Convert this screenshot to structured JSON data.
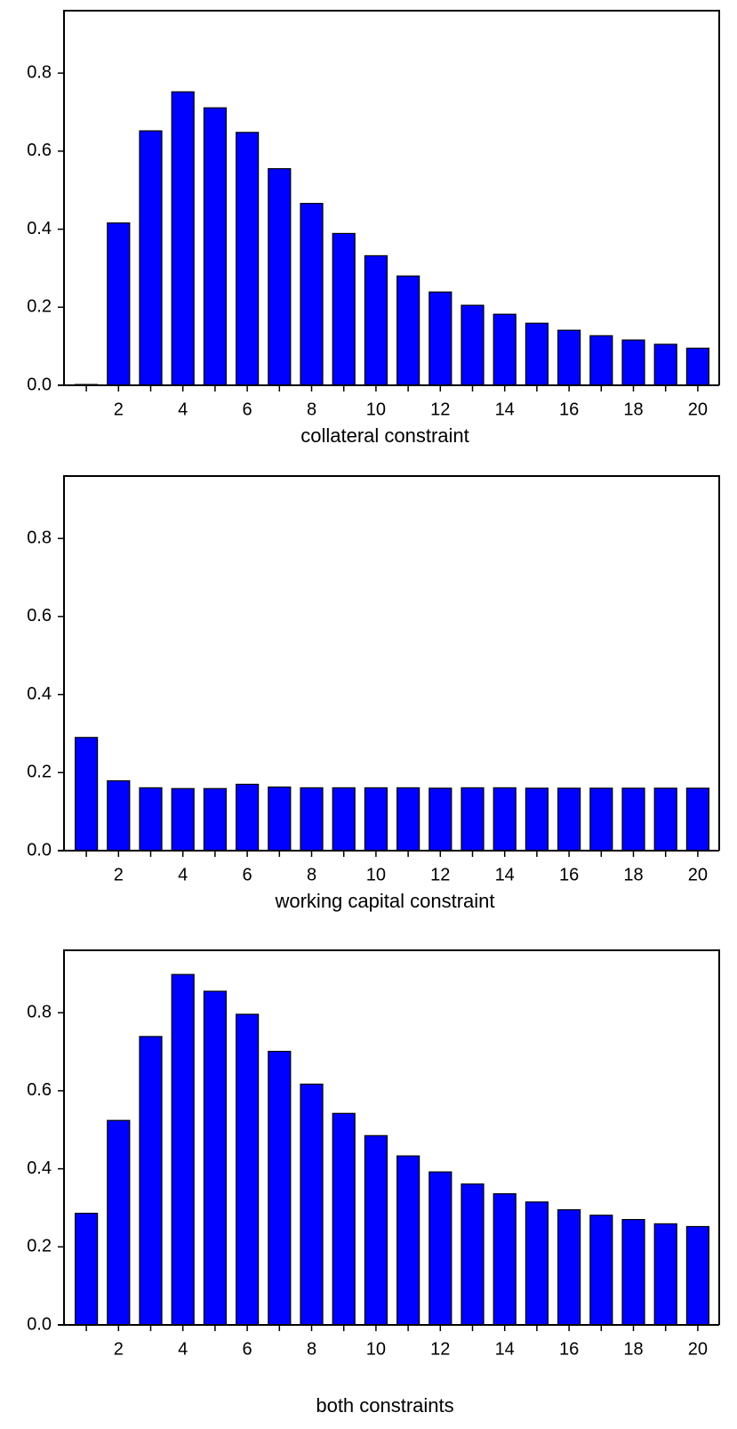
{
  "chart_data": [
    {
      "type": "bar",
      "x_label": "collateral constraint",
      "categories": [
        null,
        "2",
        null,
        "4",
        null,
        "6",
        null,
        "8",
        null,
        "10",
        null,
        "12",
        null,
        "14",
        null,
        "16",
        null,
        "18",
        null,
        "20"
      ],
      "values": [
        0.002,
        0.416,
        0.652,
        0.752,
        0.711,
        0.648,
        0.555,
        0.466,
        0.389,
        0.332,
        0.28,
        0.239,
        0.205,
        0.182,
        0.159,
        0.141,
        0.127,
        0.116,
        0.105,
        0.095
      ],
      "color": "#0000ff",
      "ylim": [
        0,
        0.96
      ],
      "yticks": [
        {
          "value": 0,
          "label": "0.0"
        },
        0.2,
        0.4,
        0.6,
        0.8
      ]
    },
    {
      "type": "bar",
      "x_label": "working capital constraint",
      "categories": [
        null,
        "2",
        null,
        "4",
        null,
        "6",
        null,
        "8",
        null,
        "10",
        null,
        "12",
        null,
        "14",
        null,
        "16",
        null,
        "18",
        null,
        "20"
      ],
      "values": [
        0.29,
        0.179,
        0.161,
        0.159,
        0.159,
        0.17,
        0.163,
        0.161,
        0.161,
        0.161,
        0.161,
        0.16,
        0.161,
        0.161,
        0.16,
        0.16,
        0.16,
        0.16,
        0.16,
        0.16
      ],
      "color": "#0000ff",
      "ylim": [
        0,
        0.96
      ],
      "yticks": [
        {
          "value": 0,
          "label": "0.0"
        },
        0.2,
        0.4,
        0.6,
        0.8
      ]
    },
    {
      "type": "bar",
      "x_label": "both constraints",
      "categories": [
        null,
        "2",
        null,
        "4",
        null,
        "6",
        null,
        "8",
        null,
        "10",
        null,
        "12",
        null,
        "14",
        null,
        "16",
        null,
        "18",
        null,
        "20"
      ],
      "values": [
        0.286,
        0.524,
        0.739,
        0.898,
        0.855,
        0.796,
        0.701,
        0.617,
        0.542,
        0.485,
        0.433,
        0.392,
        0.361,
        0.336,
        0.315,
        0.295,
        0.281,
        0.27,
        0.259,
        0.252
      ],
      "color": "#0000ff",
      "ylim": [
        0,
        0.96
      ],
      "yticks": [
        {
          "value": 0,
          "label": "0.0"
        },
        0.2,
        0.4,
        0.6,
        0.8
      ]
    }
  ]
}
